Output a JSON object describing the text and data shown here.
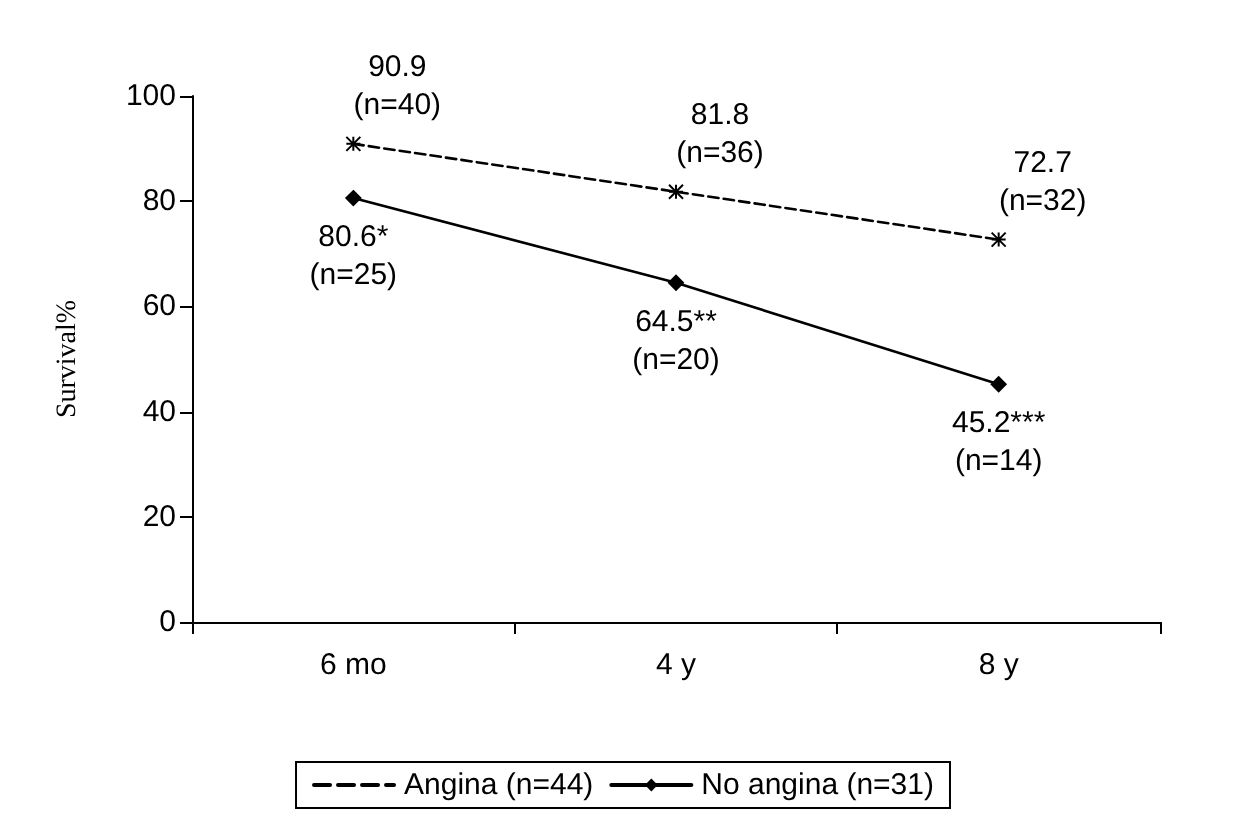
{
  "chart_data": {
    "type": "line",
    "ylabel": "Survival%",
    "categories": [
      "6 mo",
      "4 y",
      "8 y"
    ],
    "series": [
      {
        "name": "Angina (n=44)",
        "color": "#000000",
        "marker": "cross",
        "line_style": "dashed",
        "values": [
          90.9,
          81.8,
          72.7
        ],
        "value_labels": [
          "90.9\n(n=40)",
          "81.8\n(n=36)",
          "72.7\n(n=32)"
        ]
      },
      {
        "name": "No angina (n=31)",
        "color": "#000000",
        "marker": "diamond",
        "line_style": "solid",
        "values": [
          80.6,
          64.5,
          45.2
        ],
        "value_labels": [
          "80.6*\n(n=25)",
          "64.5**\n(n=20)",
          "45.2***\n(n=14)"
        ]
      }
    ],
    "ylim": [
      0,
      100
    ],
    "yticks": [
      0,
      20,
      40,
      60,
      80,
      100
    ],
    "grid": false,
    "legend": "bottom"
  }
}
